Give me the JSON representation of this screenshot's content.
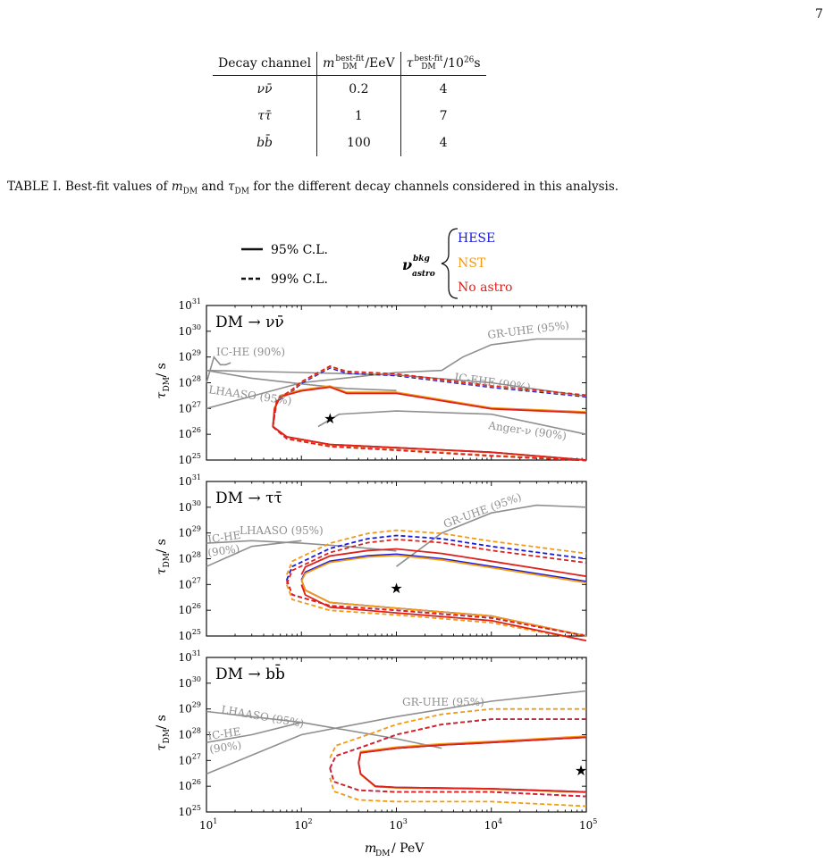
{
  "page_number": "7",
  "table": {
    "headers": [
      "Decay channel",
      "m_DM^best-fit/EeV",
      "τ_DM^best-fit/10^26s"
    ],
    "header_parts": {
      "c1": "Decay channel",
      "c2_sym": "m",
      "c2_sub": "DM",
      "c2_sup": "best-fit",
      "c2_unit": "/EeV",
      "c3_sym": "τ",
      "c3_sub": "DM",
      "c3_sup": "best-fit",
      "c3_unit": "/10",
      "c3_exp": "26",
      "c3_s": "s"
    },
    "rows": [
      {
        "channel": "νν̄",
        "mass": "0.2",
        "tau": "4"
      },
      {
        "channel": "ττ̄",
        "mass": "1",
        "tau": "7"
      },
      {
        "channel": "bb̄",
        "mass": "100",
        "tau": "4"
      }
    ]
  },
  "caption": "TABLE I. Best-fit values of m_DM and τ_DM for the different decay channels considered in this analysis.",
  "caption_parts": {
    "a": "TABLE I. Best-fit values of ",
    "m": "m",
    "msub": "DM",
    "b": " and ",
    "t": "τ",
    "tsub": "DM",
    "c": " for the different decay channels considered in this analysis."
  },
  "legend": {
    "solid": "95% C.L.",
    "dashed": "99% C.L.",
    "nu_sym": "ν",
    "nu_sup": "bkg",
    "nu_sub": "astro",
    "entries": [
      {
        "name": "HESE",
        "color": "#1a1adf"
      },
      {
        "name": "NST",
        "color": "#f39a12"
      },
      {
        "name": "No astro",
        "color": "#e0201a"
      }
    ]
  },
  "colors": {
    "hese": "#1a1adf",
    "nst": "#f39a12",
    "noastro": "#e0201a",
    "constraint": "#8f8f8f"
  },
  "chart_data": [
    {
      "type": "line",
      "panel_label": "DM → νν̄",
      "xlabel": "m_DM / PeV",
      "ylabel": "τ_DM / s",
      "xscale": "log",
      "yscale": "log",
      "xlim": [
        10,
        100000
      ],
      "ylim": [
        1e+25,
        1e+31
      ],
      "best_fit": {
        "x": 200,
        "y": 4e+26
      },
      "constraints": [
        {
          "label": "IC-HE (90%)",
          "x": [
            10,
            12,
            14,
            16,
            18
          ],
          "y": [
            1e+28,
            1e+29,
            5e+28,
            5e+28,
            6e+28
          ]
        },
        {
          "label": "LHAASO (95%)",
          "x": [
            10,
            30,
            100,
            300,
            1000
          ],
          "y": [
            3e+28,
            1.5e+28,
            9e+27,
            6e+27,
            5e+27
          ]
        },
        {
          "label": "GR-UHE (95%)",
          "x": [
            10,
            100,
            1000,
            3000,
            5000,
            10000,
            30000,
            100000
          ],
          "y": [
            1e+27,
            1e+28,
            2.5e+28,
            3e+28,
            1e+29,
            3e+29,
            5e+29,
            5e+29
          ]
        },
        {
          "label": "IC-EHE (90%)",
          "x": [
            10,
            100,
            1000,
            10000,
            100000
          ],
          "y": [
            3e+28,
            2.5e+28,
            2e+28,
            1e+28,
            3e+27
          ]
        },
        {
          "label": "Anger-ν (90%)",
          "x": [
            150,
            250,
            1000,
            10000,
            100000
          ],
          "y": [
            2e+26,
            6e+26,
            8e+26,
            6e+26,
            1e+26
          ]
        }
      ],
      "series": [
        {
          "name": "HESE",
          "level": "95% C.L.",
          "x": [
            50,
            60,
            100,
            200,
            300,
            1000,
            10000,
            100000
          ],
          "y": [
            2e+26,
            3e+27,
            5e+27,
            7e+27,
            4e+27,
            4e+27,
            1e+27,
            7e+26
          ]
        },
        {
          "name": "HESE",
          "level": "99% C.L.",
          "x": [
            50,
            60,
            100,
            200,
            300,
            1000,
            10000,
            100000
          ],
          "y": [
            2e+26,
            3e+27,
            1e+28,
            4e+28,
            2.5e+28,
            2e+28,
            7e+27,
            3e+27
          ]
        }
      ]
    },
    {
      "type": "line",
      "panel_label": "DM → ττ̄",
      "xlabel": "m_DM / PeV",
      "ylabel": "τ_DM / s",
      "xscale": "log",
      "yscale": "log",
      "xlim": [
        10,
        100000
      ],
      "ylim": [
        1e+25,
        1e+31
      ],
      "best_fit": {
        "x": 1000,
        "y": 7e+26
      },
      "constraints": [
        {
          "label": "IC-HE (90%)",
          "x": [
            10,
            30,
            100
          ],
          "y": [
            5e+27,
            3e+28,
            5e+28
          ]
        },
        {
          "label": "LHAASO (95%)",
          "x": [
            10,
            30,
            100,
            300,
            1000
          ],
          "y": [
            4e+28,
            5e+28,
            4e+28,
            3e+28,
            2e+28
          ]
        },
        {
          "label": "GR-UHE (95%)",
          "x": [
            1000,
            3000,
            10000,
            30000,
            100000
          ],
          "y": [
            5e+27,
            1e+29,
            6e+29,
            1.2e+30,
            1e+30
          ]
        }
      ],
      "series": [
        {
          "name": "NST",
          "level": "95% C.L.",
          "x": [
            100,
            300,
            1000,
            3000,
            10000,
            100000
          ],
          "y": [
            1e+27,
            1e+28,
            1.5e+28,
            1e+28,
            5e+27,
            2e+27
          ]
        },
        {
          "name": "NST",
          "level": "99% C.L.",
          "x": [
            70,
            200,
            1000,
            3000,
            10000,
            100000
          ],
          "y": [
            1e+27,
            3e+28,
            1e+29,
            8e+28,
            5e+28,
            2e+28
          ]
        }
      ]
    },
    {
      "type": "line",
      "panel_label": "DM → bb̄",
      "xlabel": "m_DM / PeV",
      "ylabel": "τ_DM / s",
      "xscale": "log",
      "yscale": "log",
      "xlim": [
        10,
        100000
      ],
      "ylim": [
        1e+25,
        1e+31
      ],
      "best_fit": {
        "x": 100000,
        "y": 4e+26
      },
      "constraints": [
        {
          "label": "IC-HE (90%)",
          "x": [
            10,
            30,
            100
          ],
          "y": [
            5e+27,
            1e+28,
            3e+28
          ]
        },
        {
          "label": "LHAASO (95%)",
          "x": [
            10,
            100,
            1000,
            3000
          ],
          "y": [
            8e+28,
            3e+28,
            7e+27,
            3e+27
          ]
        },
        {
          "label": "GR-UHE (95%)",
          "x": [
            10,
            100,
            1000,
            10000,
            100000
          ],
          "y": [
            3e+26,
            1e+28,
            5e+28,
            2e+29,
            5e+29
          ]
        }
      ],
      "series": [
        {
          "name": "HESE",
          "level": "95% C.L.",
          "x": [
            400,
            1000,
            10000,
            100000
          ],
          "y": [
            1e+26,
            5e+27,
            7e+27,
            1e+28
          ]
        },
        {
          "name": "HESE",
          "level": "99% C.L.",
          "x": [
            200,
            1000,
            10000,
            100000
          ],
          "y": [
            1e+26,
            1e+28,
            6e+28,
            1e+29
          ]
        }
      ]
    }
  ]
}
